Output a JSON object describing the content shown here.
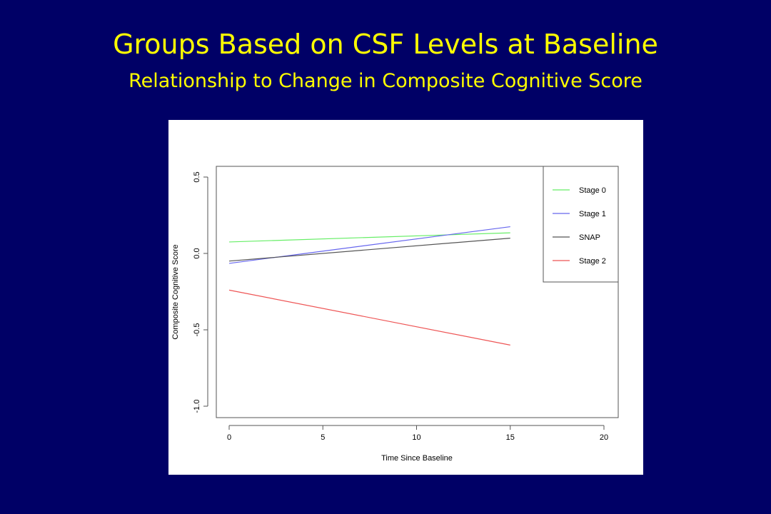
{
  "slide": {
    "title": "Groups Based on CSF Levels at Baseline",
    "subtitle": "Relationship to Change in Composite Cognitive Score",
    "background_color": "#000066",
    "title_color": "#ffff00"
  },
  "chart_data": {
    "type": "line",
    "title": "",
    "xlabel": "Time Since Baseline",
    "ylabel": "Composite Cognitive Score",
    "xlim": [
      0,
      20
    ],
    "ylim": [
      -1.0,
      0.5
    ],
    "x_ticks": [
      "0",
      "5",
      "10",
      "15",
      "20"
    ],
    "y_ticks": [
      "-1.0",
      "-0.5",
      "0.0",
      "0.5"
    ],
    "grid": false,
    "legend_position": "top-right",
    "series": [
      {
        "name": "Stage 0",
        "color": "#66ee66",
        "x": [
          0,
          15
        ],
        "y": [
          0.075,
          0.135
        ]
      },
      {
        "name": "Stage 1",
        "color": "#6666ee",
        "x": [
          0,
          15
        ],
        "y": [
          -0.065,
          0.175
        ]
      },
      {
        "name": "SNAP",
        "color": "#555555",
        "x": [
          0,
          15
        ],
        "y": [
          -0.05,
          0.1
        ]
      },
      {
        "name": "Stage 2",
        "color": "#ee5555",
        "x": [
          0,
          15
        ],
        "y": [
          -0.24,
          -0.6
        ]
      }
    ]
  }
}
